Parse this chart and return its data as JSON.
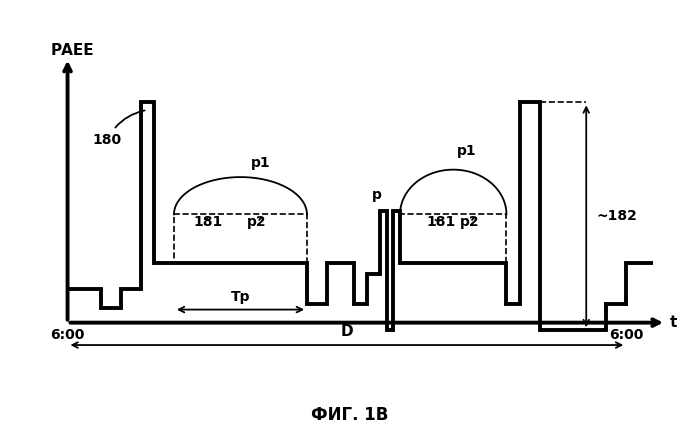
{
  "title": "ФИГ. 1В",
  "ylabel": "РАЕЕ",
  "xlabel": "t",
  "xlabel_left": "6:00",
  "xlabel_right": "6:00",
  "tp_label": "Тр",
  "d_label": "D",
  "label_180": "180",
  "label_181": "181",
  "label_182": "~182",
  "label_p1": "p1",
  "label_p2": "p2",
  "label_p": "p",
  "bg_color": "#ffffff",
  "line_color": "#000000"
}
